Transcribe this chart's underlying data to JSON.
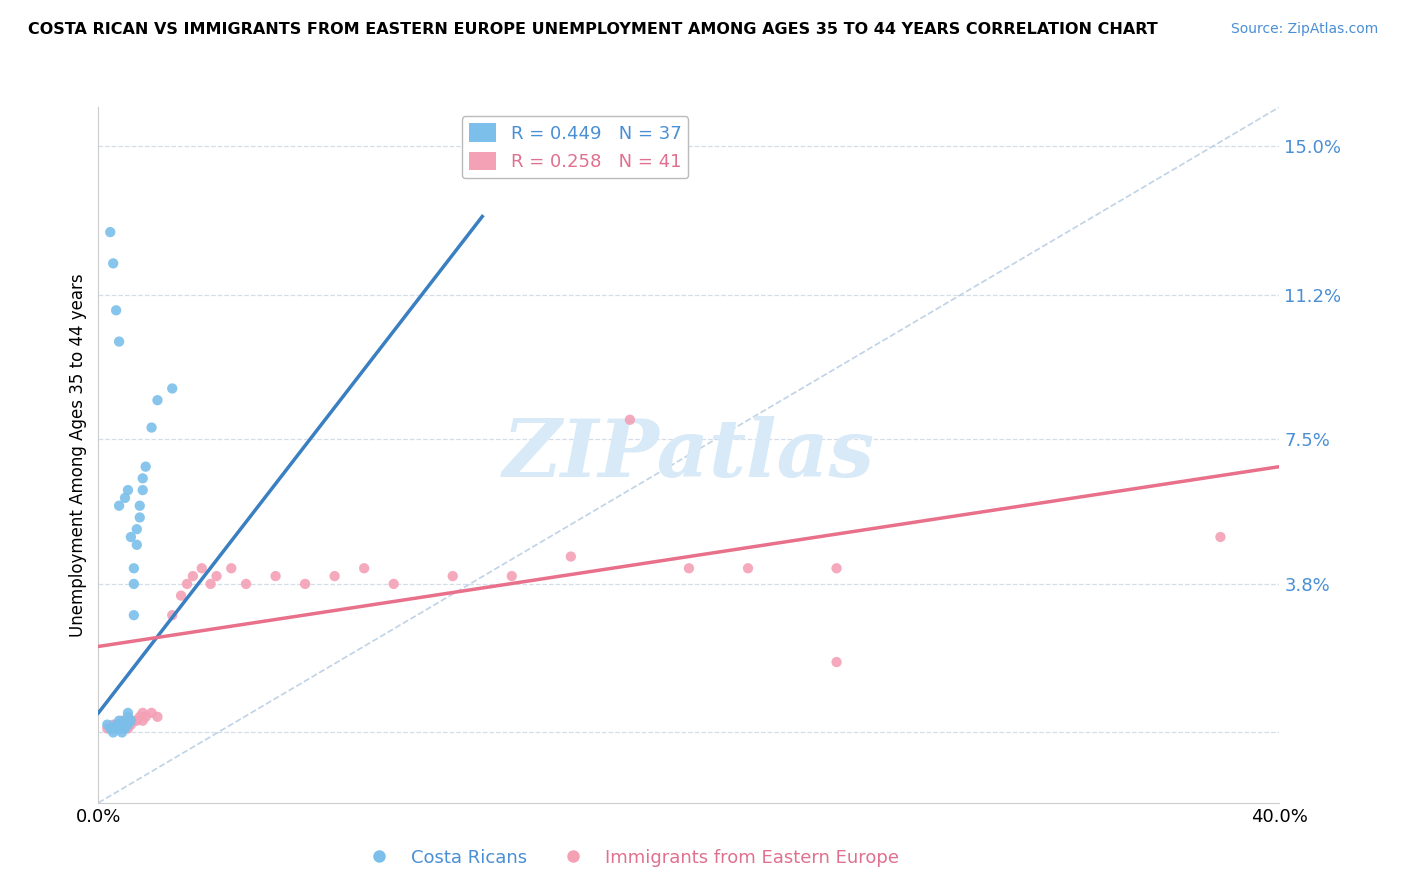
{
  "title": "COSTA RICAN VS IMMIGRANTS FROM EASTERN EUROPE UNEMPLOYMENT AMONG AGES 35 TO 44 YEARS CORRELATION CHART",
  "source": "Source: ZipAtlas.com",
  "ylabel": "Unemployment Among Ages 35 to 44 years",
  "xmin": 0.0,
  "xmax": 0.4,
  "ymin": -0.018,
  "ymax": 0.16,
  "ytick_vals": [
    0.0,
    0.038,
    0.075,
    0.112,
    0.15
  ],
  "ytick_labels": [
    "",
    "3.8%",
    "7.5%",
    "11.2%",
    "15.0%"
  ],
  "xtick_vals": [
    0.0,
    0.1,
    0.2,
    0.3,
    0.4
  ],
  "xtick_labels": [
    "0.0%",
    "",
    "",
    "",
    "40.0%"
  ],
  "blue_color": "#7bbfea",
  "pink_color": "#f4a0b5",
  "blue_line_color": "#3a7fc1",
  "pink_line_color": "#e8708a",
  "diag_color": "#b0c8e0",
  "grid_color": "#d5dde8",
  "watermark_color": "#d8eaf7",
  "blue_scatter": [
    [
      0.003,
      0.002
    ],
    [
      0.004,
      0.001
    ],
    [
      0.005,
      0.0
    ],
    [
      0.005,
      0.001
    ],
    [
      0.006,
      0.001
    ],
    [
      0.006,
      0.002
    ],
    [
      0.007,
      0.001
    ],
    [
      0.007,
      0.003
    ],
    [
      0.008,
      0.0
    ],
    [
      0.008,
      0.002
    ],
    [
      0.009,
      0.001
    ],
    [
      0.009,
      0.003
    ],
    [
      0.01,
      0.002
    ],
    [
      0.01,
      0.004
    ],
    [
      0.01,
      0.005
    ],
    [
      0.011,
      0.003
    ],
    [
      0.011,
      0.05
    ],
    [
      0.012,
      0.038
    ],
    [
      0.012,
      0.042
    ],
    [
      0.013,
      0.048
    ],
    [
      0.013,
      0.052
    ],
    [
      0.014,
      0.055
    ],
    [
      0.014,
      0.058
    ],
    [
      0.015,
      0.062
    ],
    [
      0.015,
      0.065
    ],
    [
      0.016,
      0.068
    ],
    [
      0.018,
      0.078
    ],
    [
      0.02,
      0.085
    ],
    [
      0.025,
      0.088
    ],
    [
      0.007,
      0.1
    ],
    [
      0.006,
      0.108
    ],
    [
      0.005,
      0.12
    ],
    [
      0.004,
      0.128
    ],
    [
      0.007,
      0.058
    ],
    [
      0.009,
      0.06
    ],
    [
      0.01,
      0.062
    ],
    [
      0.012,
      0.03
    ]
  ],
  "pink_scatter": [
    [
      0.003,
      0.001
    ],
    [
      0.005,
      0.002
    ],
    [
      0.006,
      0.001
    ],
    [
      0.007,
      0.002
    ],
    [
      0.008,
      0.001
    ],
    [
      0.008,
      0.003
    ],
    [
      0.009,
      0.002
    ],
    [
      0.01,
      0.001
    ],
    [
      0.01,
      0.003
    ],
    [
      0.011,
      0.002
    ],
    [
      0.012,
      0.003
    ],
    [
      0.013,
      0.003
    ],
    [
      0.014,
      0.004
    ],
    [
      0.015,
      0.003
    ],
    [
      0.015,
      0.005
    ],
    [
      0.016,
      0.004
    ],
    [
      0.018,
      0.005
    ],
    [
      0.02,
      0.004
    ],
    [
      0.025,
      0.03
    ],
    [
      0.028,
      0.035
    ],
    [
      0.03,
      0.038
    ],
    [
      0.032,
      0.04
    ],
    [
      0.035,
      0.042
    ],
    [
      0.038,
      0.038
    ],
    [
      0.04,
      0.04
    ],
    [
      0.045,
      0.042
    ],
    [
      0.05,
      0.038
    ],
    [
      0.06,
      0.04
    ],
    [
      0.07,
      0.038
    ],
    [
      0.08,
      0.04
    ],
    [
      0.09,
      0.042
    ],
    [
      0.1,
      0.038
    ],
    [
      0.12,
      0.04
    ],
    [
      0.14,
      0.04
    ],
    [
      0.16,
      0.045
    ],
    [
      0.18,
      0.08
    ],
    [
      0.2,
      0.042
    ],
    [
      0.22,
      0.042
    ],
    [
      0.25,
      0.042
    ],
    [
      0.25,
      0.018
    ],
    [
      0.38,
      0.05
    ]
  ],
  "blue_line_x": [
    0.0,
    0.13
  ],
  "blue_line_y": [
    0.005,
    0.132
  ],
  "pink_line_x": [
    0.0,
    0.4
  ],
  "pink_line_y": [
    0.022,
    0.068
  ]
}
